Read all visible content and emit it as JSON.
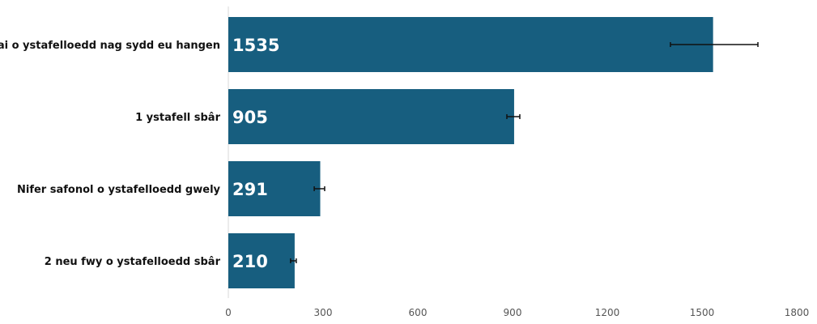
{
  "chart_data": {
    "type": "bar",
    "orientation": "horizontal",
    "title": "",
    "xlabel": "",
    "ylabel": "",
    "categories": [
      "Llai o ystafelloedd nag sydd eu hangen",
      "1 ystafell sbâr",
      "Nifer safonol o ystafelloedd gwely",
      "2 neu fwy o ystafelloedd sbâr"
    ],
    "values": [
      1535,
      905,
      291,
      210
    ],
    "error_bars": [
      {
        "low": 1400,
        "high": 1677
      },
      {
        "low": 882,
        "high": 923
      },
      {
        "low": 272,
        "high": 305
      },
      {
        "low": 197,
        "high": 215
      }
    ],
    "data_labels": [
      "1535",
      "905",
      "291",
      "210"
    ],
    "xlim": [
      0,
      1800
    ],
    "xticks": [
      0,
      300,
      600,
      900,
      1200,
      1500,
      1800
    ],
    "grid": false,
    "legend": "none",
    "colors": {
      "bar": "#175E7F",
      "error_bar": "#111111",
      "axis": "#d9d9d9",
      "data_label": "#ffffff"
    }
  }
}
